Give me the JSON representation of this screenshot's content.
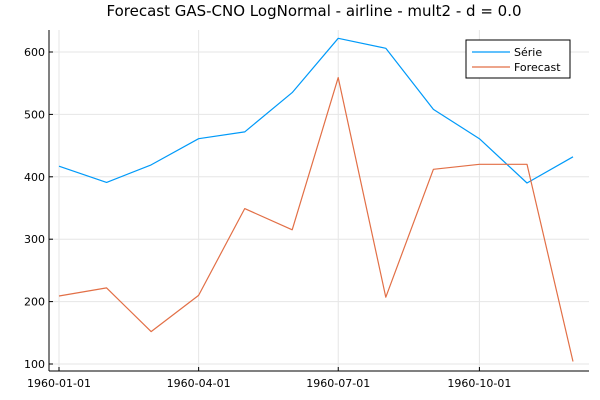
{
  "chart_data": {
    "type": "line",
    "title": "Forecast GAS-CNO LogNormal - airline - mult2 - d = 0.0",
    "xlabel": "",
    "ylabel": "",
    "x": [
      "1960-01-01",
      "1960-02-01",
      "1960-03-01",
      "1960-04-01",
      "1960-05-01",
      "1960-06-01",
      "1960-07-01",
      "1960-08-01",
      "1960-09-01",
      "1960-10-01",
      "1960-11-01",
      "1960-12-01"
    ],
    "x_ticks": [
      "1960-01-01",
      "1960-04-01",
      "1960-07-01",
      "1960-10-01"
    ],
    "ylim": [
      90,
      640
    ],
    "y_ticks": [
      100,
      200,
      300,
      400,
      500,
      600
    ],
    "grid": true,
    "legend_position": "top-right",
    "series": [
      {
        "name": "Série",
        "color": "#009af9",
        "values": [
          417,
          391,
          419,
          461,
          472,
          535,
          622,
          606,
          508,
          461,
          390,
          432
        ]
      },
      {
        "name": "Forecast",
        "color": "#e26f46",
        "values": [
          209,
          222,
          152,
          210,
          349,
          315,
          559,
          207,
          412,
          420,
          420,
          104
        ]
      }
    ]
  }
}
